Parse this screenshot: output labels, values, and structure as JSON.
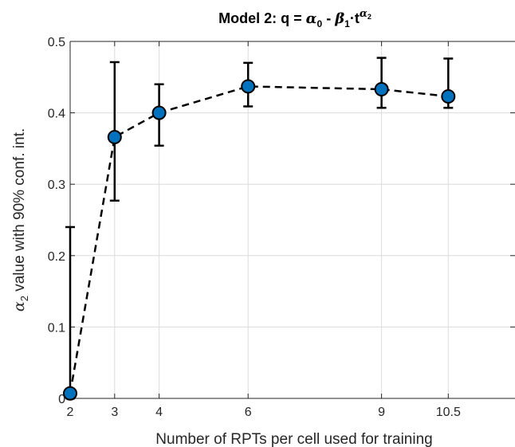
{
  "chart_data": {
    "type": "line",
    "title": {
      "prefix": "Model 2: q = ",
      "alpha": "α",
      "sub0": "0",
      "mid": " - ",
      "beta": "β",
      "sub1": "1",
      "dot_t": "·t",
      "sup_alpha": "α",
      "sup_sub": "2"
    },
    "xlabel": "Number of RPTs per cell used for training",
    "ylabel": {
      "symbol": "α",
      "sub": "2",
      "rest": " value with 90% conf. int."
    },
    "xlim": [
      2,
      12
    ],
    "ylim": [
      0,
      0.5
    ],
    "xticks": [
      2,
      3,
      4,
      6,
      9,
      10.5
    ],
    "xtick_labels": [
      "2",
      "3",
      "4",
      "6",
      "9",
      "10.5"
    ],
    "yticks": [
      0,
      0.1,
      0.2,
      0.3,
      0.4,
      0.5
    ],
    "ytick_labels": [
      "0",
      "0.1",
      "0.2",
      "0.3",
      "0.4",
      "0.5"
    ],
    "grid": true,
    "series": [
      {
        "x": [
          2,
          3,
          4,
          6,
          9,
          10.5
        ],
        "y": [
          0.007,
          0.366,
          0.4,
          0.437,
          0.433,
          0.423
        ],
        "err_low": [
          0,
          0.277,
          0.354,
          0.409,
          0.407,
          0.407
        ],
        "err_high": [
          0.24,
          0.471,
          0.44,
          0.47,
          0.477,
          0.476
        ]
      }
    ],
    "colors": {
      "marker": "#0072BD",
      "line": "#000000",
      "grid": "#dcdcdc",
      "axis": "#262626"
    }
  }
}
